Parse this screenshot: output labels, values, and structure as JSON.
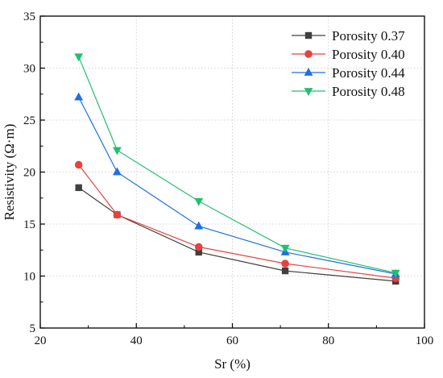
{
  "chart_data": {
    "type": "line",
    "title": "",
    "xlabel": "Sr (%)",
    "ylabel": "Resistivity (Ω·m)",
    "xlim": [
      20,
      100
    ],
    "ylim": [
      5,
      35
    ],
    "xticks": [
      20,
      40,
      60,
      80,
      100
    ],
    "yticks": [
      5,
      10,
      15,
      20,
      25,
      30,
      35
    ],
    "grid": true,
    "legend_position": "top-right",
    "x": [
      28,
      36,
      53,
      71,
      94
    ],
    "series": [
      {
        "name": "Porosity 0.37",
        "color": "#404040",
        "marker": "square",
        "values": [
          18.5,
          15.9,
          12.3,
          10.5,
          9.5
        ]
      },
      {
        "name": "Porosity 0.40",
        "color": "#e8423f",
        "marker": "circle",
        "values": [
          20.7,
          15.9,
          12.8,
          11.2,
          9.8
        ]
      },
      {
        "name": "Porosity 0.44",
        "color": "#1f6fe0",
        "marker": "triangle-up",
        "values": [
          27.2,
          20.0,
          14.8,
          12.3,
          10.2
        ]
      },
      {
        "name": "Porosity 0.48",
        "color": "#22bf70",
        "marker": "triangle-down",
        "values": [
          31.1,
          22.1,
          17.2,
          12.7,
          10.3
        ]
      }
    ]
  }
}
